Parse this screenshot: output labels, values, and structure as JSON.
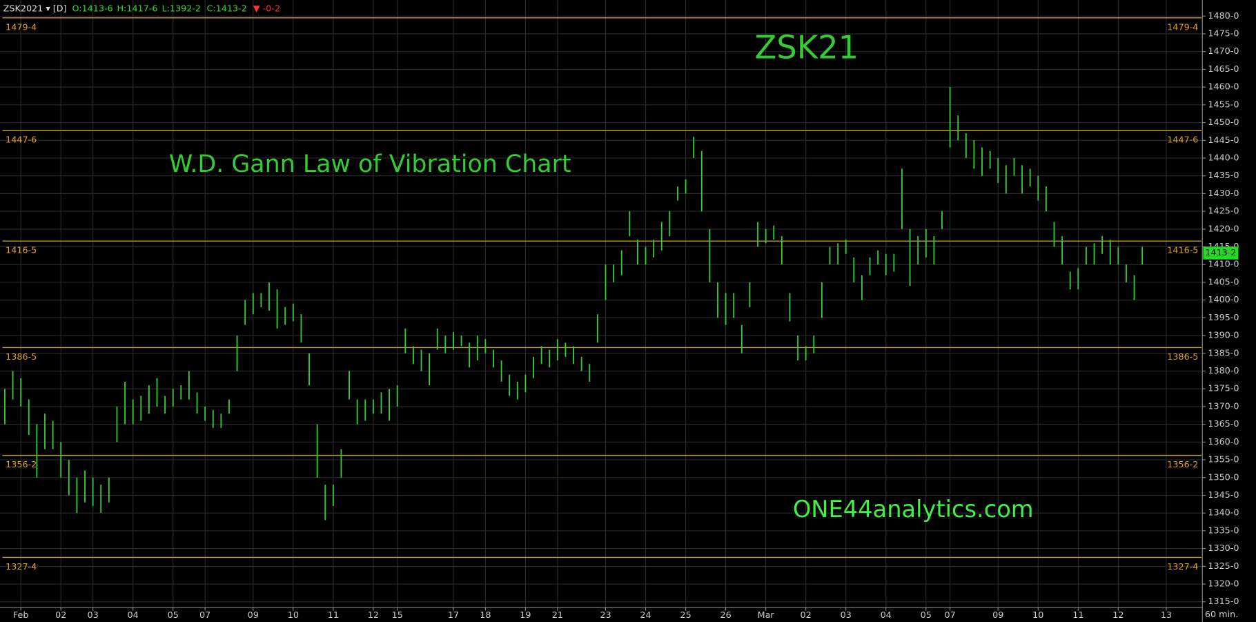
{
  "chart_data": {
    "type": "hl_bar",
    "header": {
      "symbol": "ZSK2021 ▾ [D]",
      "open": "O:1413-6",
      "high": "H:1417-6",
      "low": "L:1392-2",
      "close": "C:1413-2",
      "change": "▼ -0-2"
    },
    "title": "ZSK21",
    "subtitle": "W.D. Gann Law of Vibration Chart",
    "annotation": "ONE44analytics.com",
    "x_unit": "60 min.",
    "color": "#33cc33",
    "level_color": "#c89a2a",
    "grid": true,
    "last": {
      "value": 1413.25,
      "label": "1413-2"
    },
    "levels": [
      {
        "value": 1479.5,
        "label": "1479-4"
      },
      {
        "value": 1447.75,
        "label": "1447-6"
      },
      {
        "value": 1416.625,
        "label": "1416-5"
      },
      {
        "value": 1386.625,
        "label": "1386-5"
      },
      {
        "value": 1356.25,
        "label": "1356-2"
      },
      {
        "value": 1327.5,
        "label": "1327-4"
      }
    ],
    "ylim": [
      1313.4,
      1484.5
    ],
    "yticks": [
      {
        "value": 1480,
        "label": "1480-0"
      },
      {
        "value": 1475,
        "label": "1475-0"
      },
      {
        "value": 1470,
        "label": "1470-0"
      },
      {
        "value": 1465,
        "label": "1465-0"
      },
      {
        "value": 1460,
        "label": "1460-0"
      },
      {
        "value": 1455,
        "label": "1455-0"
      },
      {
        "value": 1450,
        "label": "1450-0"
      },
      {
        "value": 1445,
        "label": "1445-0"
      },
      {
        "value": 1440,
        "label": "1440-0"
      },
      {
        "value": 1435,
        "label": "1435-0"
      },
      {
        "value": 1430,
        "label": "1430-0"
      },
      {
        "value": 1425,
        "label": "1425-0"
      },
      {
        "value": 1420,
        "label": "1420-0"
      },
      {
        "value": 1415,
        "label": "1415-0"
      },
      {
        "value": 1410,
        "label": "1410-0"
      },
      {
        "value": 1405,
        "label": "1405-0"
      },
      {
        "value": 1400,
        "label": "1400-0"
      },
      {
        "value": 1395,
        "label": "1395-0"
      },
      {
        "value": 1390,
        "label": "1390-0"
      },
      {
        "value": 1385,
        "label": "1385-0"
      },
      {
        "value": 1380,
        "label": "1380-0"
      },
      {
        "value": 1375,
        "label": "1375-0"
      },
      {
        "value": 1370,
        "label": "1370-0"
      },
      {
        "value": 1365,
        "label": "1365-0"
      },
      {
        "value": 1360,
        "label": "1360-0"
      },
      {
        "value": 1355,
        "label": "1355-0"
      },
      {
        "value": 1350,
        "label": "1350-0"
      },
      {
        "value": 1345,
        "label": "1345-0"
      },
      {
        "value": 1340,
        "label": "1340-0"
      },
      {
        "value": 1335,
        "label": "1335-0"
      },
      {
        "value": 1330,
        "label": "1330-0"
      },
      {
        "value": 1325,
        "label": "1325-0"
      },
      {
        "value": 1320,
        "label": "1320-0"
      },
      {
        "value": 1315,
        "label": "1315-0"
      }
    ],
    "categories": [
      null,
      null,
      "Feb",
      null,
      null,
      null,
      null,
      "02",
      null,
      null,
      null,
      "03",
      null,
      null,
      null,
      null,
      "04",
      null,
      null,
      null,
      null,
      "05",
      null,
      null,
      null,
      "07",
      null,
      null,
      null,
      null,
      null,
      "09",
      null,
      null,
      null,
      null,
      "10",
      null,
      null,
      null,
      null,
      "11",
      null,
      null,
      null,
      null,
      "12",
      null,
      null,
      "15",
      null,
      null,
      null,
      null,
      null,
      null,
      "17",
      null,
      null,
      null,
      "18",
      null,
      null,
      null,
      null,
      "19",
      null,
      null,
      null,
      "21",
      null,
      null,
      null,
      null,
      null,
      "23",
      null,
      null,
      null,
      null,
      "24",
      null,
      null,
      null,
      null,
      "25",
      null,
      null,
      null,
      null,
      "26",
      null,
      null,
      null,
      null,
      "Mar",
      null,
      null,
      null,
      null,
      "02",
      null,
      null,
      null,
      null,
      "03",
      null,
      null,
      null,
      null,
      "04",
      null,
      null,
      null,
      null,
      "05",
      null,
      null,
      "07",
      null,
      null,
      null,
      null,
      null,
      "09",
      null,
      null,
      null,
      null,
      "10",
      null,
      null,
      null,
      null,
      "11",
      null,
      null,
      null,
      null,
      "12",
      null,
      null,
      null,
      null,
      null,
      "13",
      null,
      null,
      null,
      null
    ],
    "high": [
      1375,
      1380,
      1378,
      1372,
      1365,
      1368,
      1366,
      1360,
      1355,
      1350,
      1352,
      1350,
      1348,
      1350,
      1370,
      1377,
      1372,
      1373,
      1376,
      1378,
      1373,
      1375,
      1376,
      1380,
      1374,
      1370,
      1369,
      1368,
      1372,
      1390,
      1400,
      1402,
      1402,
      1405,
      1403,
      1398,
      1399,
      1396,
      1385,
      1365,
      1348,
      1348,
      1358,
      1380,
      1372,
      1372,
      1372,
      1374,
      1375,
      1376,
      1392,
      1387,
      1386,
      1385,
      1392,
      1390,
      1391,
      1390,
      1388,
      1390,
      1389,
      1386,
      1383,
      1379,
      1377,
      1379,
      1384,
      1387,
      1386,
      1389,
      1388,
      1387,
      1384,
      1382,
      1396,
      1410,
      1410,
      1414,
      1425,
      1417,
      1415,
      1417,
      1422,
      1425,
      1432,
      1434,
      1446,
      1442,
      1420,
      1405,
      1402,
      1402,
      1393,
      1405,
      1422,
      1420,
      1421,
      1418,
      1402,
      1390,
      1387,
      1390,
      1405,
      1415,
      1416,
      1417,
      1412,
      1407,
      1412,
      1414,
      1413,
      1413,
      1437,
      1420,
      1418,
      1420,
      1418,
      1425,
      1460,
      1452,
      1447,
      1445,
      1443,
      1442,
      1440,
      1438,
      1440,
      1438,
      1437,
      1435,
      1432,
      1422,
      1418,
      1408,
      1409,
      1415,
      1416,
      1418,
      1417,
      1415,
      1410,
      1407,
      1415,
      null,
      null,
      null,
      null,
      null,
      null,
      null
    ],
    "low": [
      1365,
      1372,
      1370,
      1362,
      1350,
      1358,
      1358,
      1350,
      1345,
      1340,
      1343,
      1342,
      1340,
      1343,
      1360,
      1365,
      1365,
      1366,
      1368,
      1370,
      1368,
      1370,
      1372,
      1372,
      1368,
      1366,
      1364,
      1364,
      1368,
      1380,
      1393,
      1396,
      1398,
      1397,
      1392,
      1393,
      1394,
      1388,
      1376,
      1350,
      1338,
      1342,
      1350,
      1372,
      1365,
      1366,
      1368,
      1368,
      1366,
      1370,
      1385,
      1382,
      1380,
      1376,
      1386,
      1385,
      1386,
      1387,
      1381,
      1383,
      1385,
      1381,
      1377,
      1373,
      1372,
      1374,
      1378,
      1382,
      1381,
      1383,
      1384,
      1382,
      1380,
      1377,
      1388,
      1400,
      1405,
      1407,
      1418,
      1410,
      1410,
      1412,
      1414,
      1418,
      1428,
      1430,
      1440,
      1425,
      1405,
      1395,
      1393,
      1395,
      1385,
      1398,
      1415,
      1416,
      1417,
      1410,
      1394,
      1383,
      1383,
      1385,
      1395,
      1410,
      1410,
      1413,
      1405,
      1400,
      1407,
      1410,
      1407,
      1408,
      1420,
      1404,
      1410,
      1412,
      1410,
      1420,
      1443,
      1445,
      1440,
      1437,
      1435,
      1437,
      1433,
      1430,
      1435,
      1430,
      1432,
      1428,
      1425,
      1415,
      1410,
      1403,
      1403,
      1410,
      1410,
      1413,
      1410,
      1410,
      1405,
      1400,
      1410,
      null,
      null,
      null,
      null,
      null,
      null,
      null
    ]
  }
}
